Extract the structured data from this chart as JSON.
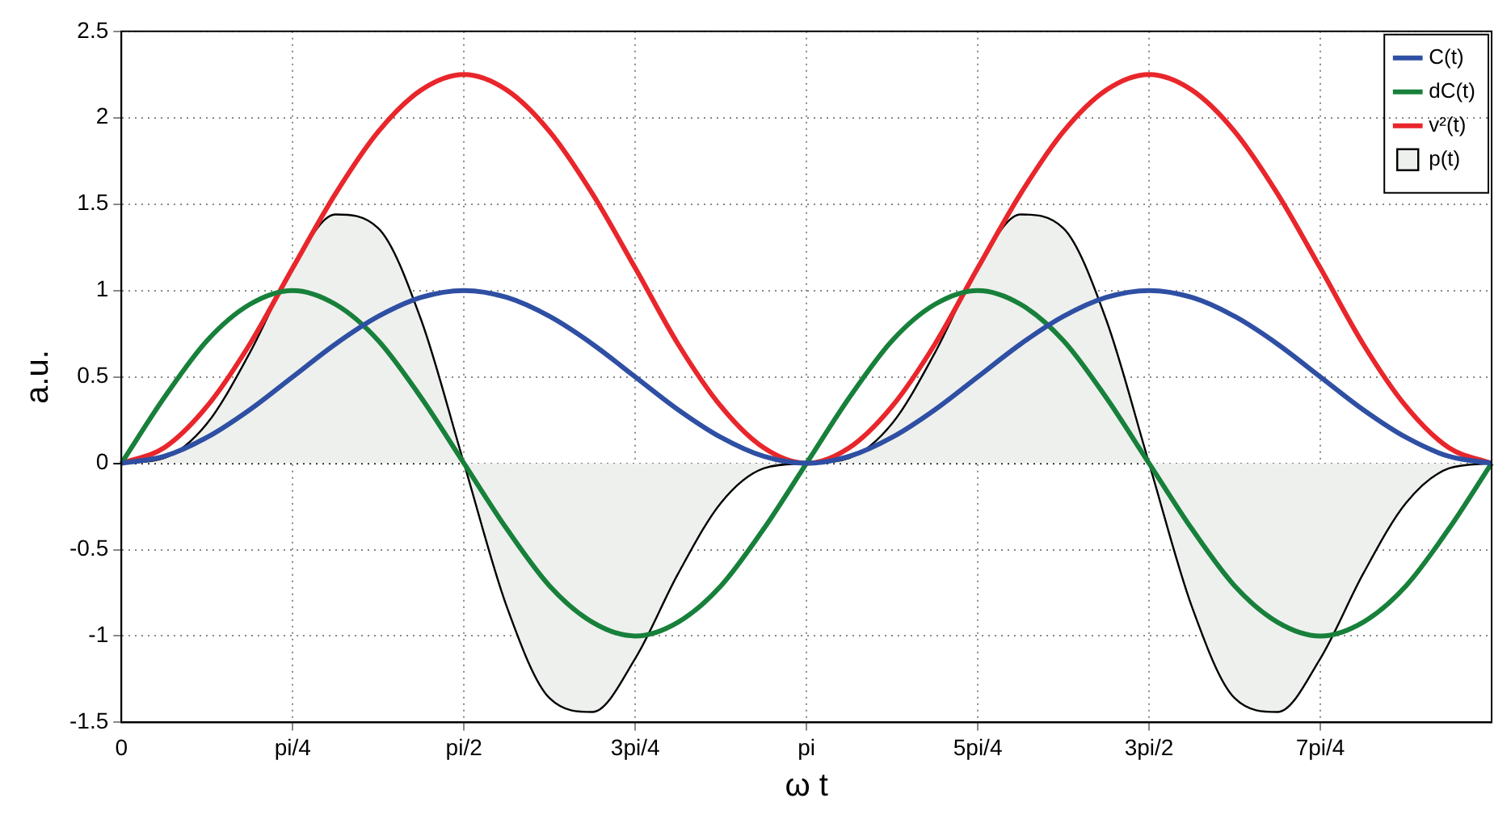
{
  "chart_data": {
    "type": "line",
    "xlabel": "ω t",
    "ylabel": "a.u.",
    "categories": [
      "0",
      null,
      null,
      null,
      "pi/4",
      null,
      null,
      null,
      "pi/2",
      null,
      null,
      null,
      "3pi/4",
      null,
      null,
      null,
      "pi",
      null,
      null,
      null,
      "5pi/4",
      null,
      null,
      null,
      "3pi/2",
      null,
      null,
      null,
      "7pi/4",
      null,
      null,
      null,
      null
    ],
    "series": [
      {
        "name": "C(t)",
        "color": "#2e4fa3",
        "values": [
          0,
          0.04,
          0.15,
          0.31,
          0.5,
          0.69,
          0.85,
          0.96,
          1,
          0.96,
          0.85,
          0.69,
          0.5,
          0.31,
          0.15,
          0.04,
          0,
          0.04,
          0.15,
          0.31,
          0.5,
          0.69,
          0.85,
          0.96,
          1,
          0.96,
          0.85,
          0.69,
          0.5,
          0.31,
          0.15,
          0.04,
          0
        ]
      },
      {
        "name": "dC(t)",
        "color": "#17803a",
        "values": [
          0,
          0.38,
          0.71,
          0.92,
          1,
          0.92,
          0.71,
          0.38,
          0,
          -0.38,
          -0.71,
          -0.92,
          -1,
          -0.92,
          -0.71,
          -0.38,
          0,
          0.38,
          0.71,
          0.92,
          1,
          0.92,
          0.71,
          0.38,
          0,
          -0.38,
          -0.71,
          -0.92,
          -1,
          -0.92,
          -0.71,
          -0.38,
          0
        ]
      },
      {
        "name": "v²(t)",
        "color": "#e8262b",
        "values": [
          0,
          0.09,
          0.33,
          0.69,
          1.13,
          1.56,
          1.92,
          2.16,
          2.25,
          2.16,
          1.92,
          1.56,
          1.13,
          0.69,
          0.33,
          0.09,
          0,
          0.09,
          0.33,
          0.69,
          1.13,
          1.56,
          1.92,
          2.16,
          2.25,
          2.16,
          1.92,
          1.56,
          1.13,
          0.69,
          0.33,
          0.09,
          0
        ]
      },
      {
        "name": "p(t)",
        "type": "area",
        "color": "#eef0ee",
        "values": [
          0,
          0.03,
          0.23,
          0.64,
          1.13,
          1.44,
          1.36,
          0.83,
          0,
          -0.83,
          -1.36,
          -1.44,
          -1.13,
          -0.64,
          -0.23,
          -0.03,
          0,
          0.03,
          0.23,
          0.64,
          1.13,
          1.44,
          1.36,
          0.83,
          0,
          -0.83,
          -1.36,
          -1.44,
          -1.13,
          -0.64,
          -0.23,
          -0.03,
          0
        ]
      }
    ],
    "ylim": [
      -1.5,
      2.5
    ],
    "yticks": [
      -1.5,
      -1,
      -0.5,
      0,
      0.5,
      1,
      1.5,
      2,
      2.5
    ],
    "grid": true,
    "legend": "top right"
  }
}
